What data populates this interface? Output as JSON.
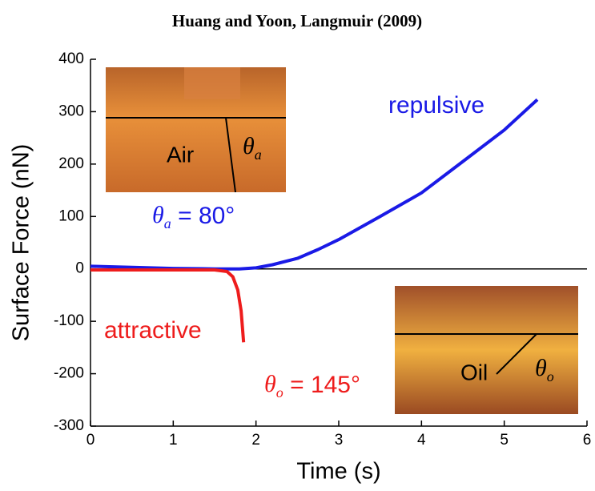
{
  "chart_data": {
    "type": "line",
    "title": "Huang and Yoon, Langmuir (2009)",
    "xlabel": "Time (s)",
    "ylabel": "Surface Force (nN)",
    "xlim": [
      0,
      6
    ],
    "xticks": [
      0,
      1,
      2,
      3,
      4,
      5,
      6
    ],
    "ylim": [
      -300,
      400
    ],
    "yticks": [
      -300,
      -200,
      -100,
      0,
      100,
      200,
      300,
      400
    ],
    "zero_line": true,
    "series": [
      {
        "name": "repulsive",
        "color": "#1a1ae6",
        "x": [
          0,
          0.5,
          1,
          1.5,
          1.8,
          2,
          2.2,
          2.5,
          2.75,
          3,
          3.5,
          4,
          4.5,
          5,
          5.4
        ],
        "values": [
          5,
          3,
          1,
          0,
          0,
          2,
          8,
          20,
          37,
          56,
          100,
          145,
          205,
          265,
          323
        ]
      },
      {
        "name": "attractive",
        "color": "#ee1c1c",
        "x": [
          0,
          0.5,
          1,
          1.5,
          1.65,
          1.72,
          1.78,
          1.82,
          1.85
        ],
        "values": [
          -2,
          -2,
          -2,
          -2,
          -5,
          -15,
          -40,
          -80,
          -140
        ]
      }
    ],
    "annotations": [
      {
        "symbol": "θ",
        "subscript": "a",
        "text": " = 80°",
        "color": "#1a1ae6"
      },
      {
        "symbol": "θ",
        "subscript": "o",
        "text": " = 145°",
        "color": "#ee1c1c"
      }
    ],
    "insets": [
      {
        "medium": "Air",
        "symbol": "θ",
        "subscript": "a"
      },
      {
        "medium": "Oil",
        "symbol": "θ",
        "subscript": "o"
      }
    ]
  }
}
